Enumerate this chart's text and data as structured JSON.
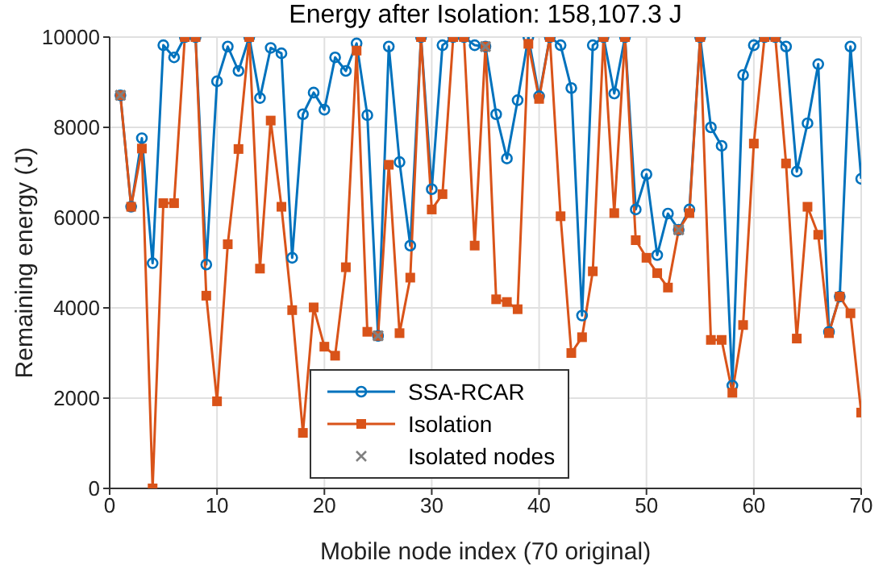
{
  "chart_data": {
    "type": "line",
    "title": "Energy after Isolation: 158,107.3 J",
    "xlabel": "Mobile node index (70 original)",
    "ylabel": "Remaining energy (J)",
    "x": [
      1,
      2,
      3,
      4,
      5,
      6,
      7,
      8,
      9,
      10,
      11,
      12,
      13,
      14,
      15,
      16,
      17,
      18,
      19,
      20,
      21,
      22,
      23,
      24,
      25,
      26,
      27,
      28,
      29,
      30,
      31,
      32,
      33,
      34,
      35,
      36,
      37,
      38,
      39,
      40,
      41,
      42,
      43,
      44,
      45,
      46,
      47,
      48,
      49,
      50,
      51,
      52,
      53,
      54,
      55,
      56,
      57,
      58,
      59,
      60,
      61,
      62,
      63,
      64,
      65,
      66,
      67,
      68,
      69,
      70
    ],
    "xlim": [
      0,
      70
    ],
    "xticks": [
      0,
      10,
      20,
      30,
      40,
      50,
      60,
      70
    ],
    "ylim": [
      0,
      10000
    ],
    "yticks": [
      0,
      2000,
      4000,
      6000,
      8000,
      10000
    ],
    "grid": true,
    "legend": "bottom",
    "series": [
      {
        "name": "SSA-RCAR",
        "color": "#0072bd",
        "marker": "circle",
        "values": [
          8710,
          6240,
          7760,
          4990,
          9820,
          9550,
          10000,
          10000,
          4960,
          9020,
          9790,
          9250,
          10000,
          8650,
          9760,
          9640,
          5110,
          8290,
          8770,
          8390,
          9550,
          9250,
          9860,
          8270,
          3380,
          9790,
          7230,
          5380,
          10000,
          6630,
          9820,
          10000,
          10000,
          9820,
          9790,
          8290,
          7310,
          8600,
          10000,
          8690,
          10000,
          9820,
          8870,
          3830,
          9820,
          10000,
          8750,
          10000,
          6180,
          6960,
          5170,
          6090,
          5730,
          6180,
          10000,
          8000,
          7590,
          2280,
          9160,
          9820,
          10000,
          10000,
          9790,
          7020,
          8090,
          9400,
          3470,
          4250,
          9790,
          6860
        ]
      },
      {
        "name": "Isolation",
        "color": "#d95319",
        "marker": "square",
        "values": [
          8710,
          6240,
          7530,
          0,
          6320,
          6320,
          10000,
          10000,
          4270,
          1930,
          5410,
          7520,
          10000,
          4870,
          8150,
          6240,
          3950,
          1230,
          4010,
          3140,
          2940,
          4900,
          9700,
          3470,
          3380,
          7170,
          3440,
          4670,
          10000,
          6180,
          6520,
          10000,
          10000,
          5380,
          9790,
          4190,
          4130,
          3970,
          9850,
          8630,
          10000,
          6030,
          3000,
          3350,
          4810,
          10000,
          6100,
          10000,
          5500,
          5110,
          4770,
          4450,
          5730,
          6100,
          10000,
          3290,
          3290,
          2120,
          3620,
          7640,
          10000,
          10000,
          7200,
          3320,
          6240,
          5620,
          3440,
          4250,
          3880,
          1680
        ]
      },
      {
        "name": "Isolated nodes",
        "type": "scatter",
        "color": "#808080",
        "marker": "cross",
        "x": [
          1,
          25,
          35,
          53
        ],
        "values": [
          8710,
          3380,
          9790,
          5730
        ]
      }
    ]
  }
}
